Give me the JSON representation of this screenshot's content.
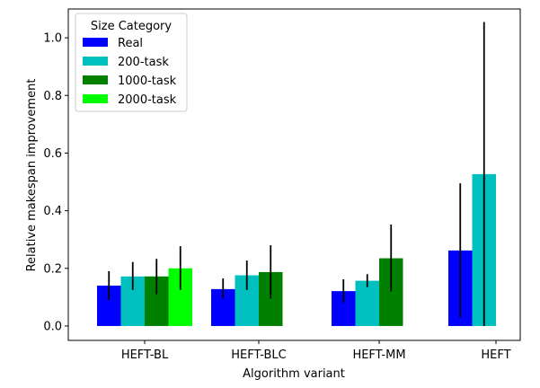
{
  "chart_data": {
    "type": "bar",
    "title": "",
    "xlabel": "Algorithm variant",
    "ylabel": "Relative makespan improvement",
    "ylim": [
      -0.05,
      1.1
    ],
    "yticks": [
      "0.0",
      "0.2",
      "0.4",
      "0.6",
      "0.8",
      "1.0"
    ],
    "categories": [
      "HEFT-BL",
      "HEFT-BLC",
      "HEFT-MM",
      "HEFT"
    ],
    "legend": {
      "title": "Size Category",
      "placement": "top-left"
    },
    "series": [
      {
        "name": "Real",
        "color": "#0000ff",
        "values": [
          0.14,
          0.128,
          0.121,
          0.262
        ],
        "err_low": [
          0.09,
          0.095,
          0.082,
          0.03
        ],
        "err_high": [
          0.19,
          0.165,
          0.162,
          0.495
        ]
      },
      {
        "name": "200-task",
        "color": "#00bfbf",
        "values": [
          0.172,
          0.176,
          0.157,
          0.527
        ],
        "err_low": [
          0.125,
          0.125,
          0.135,
          0.0
        ],
        "err_high": [
          0.222,
          0.227,
          0.18,
          1.055
        ]
      },
      {
        "name": "1000-task",
        "color": "#008000",
        "values": [
          0.172,
          0.187,
          0.235,
          null
        ],
        "err_low": [
          0.11,
          0.095,
          0.12,
          null
        ],
        "err_high": [
          0.233,
          0.28,
          0.352,
          null
        ]
      },
      {
        "name": "2000-task",
        "color": "#00ff00",
        "values": [
          0.2,
          null,
          null,
          null
        ],
        "err_low": [
          0.125,
          null,
          null,
          null
        ],
        "err_high": [
          0.277,
          null,
          null,
          null
        ]
      }
    ]
  }
}
